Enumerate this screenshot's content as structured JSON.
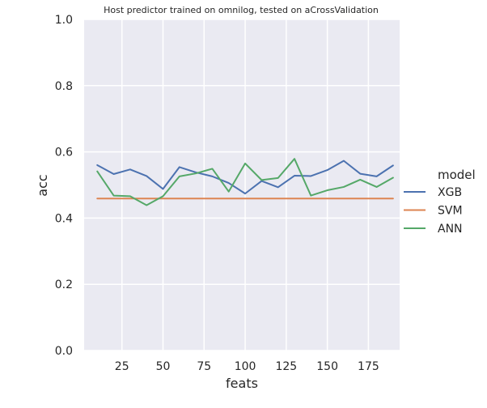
{
  "chart_data": {
    "type": "line",
    "title": "Host predictor trained on omnilog, tested on aCrossValidation",
    "xlabel": "feats",
    "ylabel": "acc",
    "xlim": [
      2,
      194
    ],
    "ylim": [
      0.0,
      1.0
    ],
    "x_ticks": [
      25,
      50,
      75,
      100,
      125,
      150,
      175
    ],
    "y_ticks": [
      0.0,
      0.2,
      0.4,
      0.6,
      0.8,
      1.0
    ],
    "x_tick_labels": [
      "25",
      "50",
      "75",
      "100",
      "125",
      "150",
      "175"
    ],
    "y_tick_labels": [
      "0.0",
      "0.2",
      "0.4",
      "0.6",
      "0.8",
      "1.0"
    ],
    "grid": true,
    "legend_title": "model",
    "legend_placement": "right",
    "x": [
      10,
      20,
      30,
      40,
      50,
      60,
      70,
      80,
      90,
      100,
      110,
      120,
      130,
      140,
      150,
      160,
      170,
      180,
      190
    ],
    "series": [
      {
        "name": "XGB",
        "color": "#4c72b0",
        "values": [
          0.56,
          0.533,
          0.547,
          0.527,
          0.488,
          0.554,
          0.538,
          0.526,
          0.506,
          0.474,
          0.512,
          0.493,
          0.528,
          0.527,
          0.545,
          0.573,
          0.534,
          0.526,
          0.559
        ]
      },
      {
        "name": "SVM",
        "color": "#dd8452",
        "values": [
          0.459,
          0.459,
          0.459,
          0.459,
          0.459,
          0.459,
          0.459,
          0.459,
          0.459,
          0.459,
          0.459,
          0.459,
          0.459,
          0.459,
          0.459,
          0.459,
          0.459,
          0.459,
          0.459
        ]
      },
      {
        "name": "ANN",
        "color": "#55a868",
        "values": [
          0.541,
          0.468,
          0.466,
          0.439,
          0.466,
          0.526,
          0.535,
          0.549,
          0.48,
          0.565,
          0.515,
          0.521,
          0.579,
          0.468,
          0.484,
          0.494,
          0.516,
          0.494,
          0.522
        ]
      }
    ]
  }
}
